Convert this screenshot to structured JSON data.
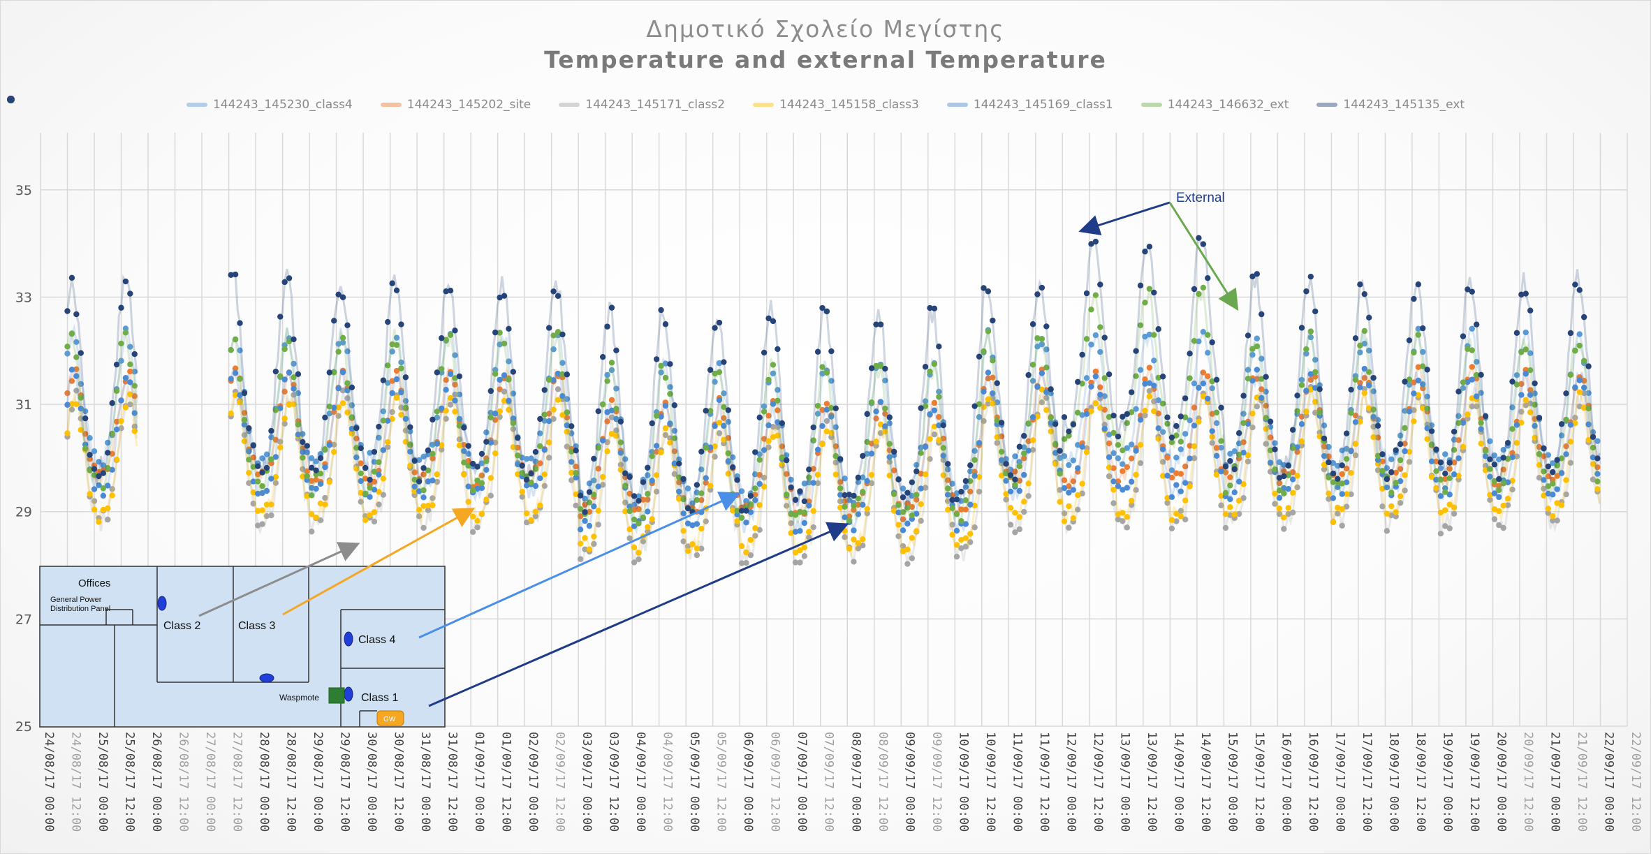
{
  "title": "Δημοτικό Σχολείο Μεγίστης",
  "subtitle": "Temperature and external Temperature",
  "colors": {
    "grid": "#d9d9d9",
    "axis_text": "#595959",
    "x_text": "#404040"
  },
  "chart_data": {
    "type": "scatter",
    "title": "Δημοτικό Σχολείο Μεγίστης",
    "subtitle": "Temperature and external Temperature",
    "ylim": [
      25,
      36
    ],
    "yticks": [
      25,
      27,
      29,
      31,
      33,
      35
    ],
    "xlim": [
      "24/08/17 00:00",
      "22/09/17 12:00"
    ],
    "x_tick_labels": [
      "24/08/17 00:00",
      "24/08/17 12:00",
      "25/08/17 00:00",
      "25/08/17 12:00",
      "26/08/17 00:00",
      "26/08/17 12:00",
      "27/08/17 00:00",
      "27/08/17 12:00",
      "28/08/17 00:00",
      "28/08/17 12:00",
      "29/08/17 00:00",
      "29/08/17 12:00",
      "30/08/17 00:00",
      "30/08/17 12:00",
      "31/08/17 00:00",
      "31/08/17 12:00",
      "01/09/17 00:00",
      "01/09/17 12:00",
      "02/09/17 00:00",
      "02/09/17 12:00",
      "03/09/17 00:00",
      "03/09/17 12:00",
      "04/09/17 00:00",
      "04/09/17 12:00",
      "05/09/17 00:00",
      "05/09/17 12:00",
      "06/09/17 00:00",
      "06/09/17 12:00",
      "07/09/17 00:00",
      "07/09/17 12:00",
      "08/09/17 00:00",
      "08/09/17 12:00",
      "09/09/17 00:00",
      "09/09/17 12:00",
      "10/09/17 00:00",
      "10/09/17 12:00",
      "11/09/17 00:00",
      "11/09/17 12:00",
      "12/09/17 00:00",
      "12/09/17 12:00",
      "13/09/17 00:00",
      "13/09/17 12:00",
      "14/09/17 00:00",
      "14/09/17 12:00",
      "15/09/17 00:00",
      "15/09/17 12:00",
      "16/09/17 00:00",
      "16/09/17 12:00",
      "17/09/17 00:00",
      "17/09/17 12:00",
      "18/09/17 00:00",
      "18/09/17 12:00",
      "19/09/17 00:00",
      "19/09/17 12:00",
      "20/09/17 00:00",
      "20/09/17 12:00",
      "21/09/17 00:00",
      "21/09/17 12:00",
      "22/09/17 00:00",
      "22/09/17 12:00"
    ],
    "x_tick_light": [
      1,
      5,
      6,
      7,
      19,
      23,
      25,
      27,
      29,
      31,
      33,
      55,
      57,
      59
    ],
    "gap": {
      "from": "25/08/17 20:00",
      "to": "27/08/17 12:00"
    },
    "series": [
      {
        "name": "144243_145230_class4",
        "color": "#5b9bd5",
        "base": 30.6,
        "amp": 1.2,
        "phase": 0.6,
        "noise": 0.35
      },
      {
        "name": "144243_145202_site",
        "color": "#ed7d31",
        "base": 30.2,
        "amp": 1.0,
        "phase": 0.62,
        "noise": 0.3
      },
      {
        "name": "144243_145171_class2",
        "color": "#a5a5a5",
        "base": 29.5,
        "amp": 1.2,
        "phase": 0.64,
        "noise": 0.4
      },
      {
        "name": "144243_145158_class3",
        "color": "#ffc000",
        "base": 29.6,
        "amp": 1.1,
        "phase": 0.63,
        "noise": 0.3
      },
      {
        "name": "144243_145169_class1",
        "color": "#4a8ad4",
        "base": 30.0,
        "amp": 1.1,
        "phase": 0.61,
        "noise": 0.3
      },
      {
        "name": "144243_146632_ext",
        "color": "#70ad47",
        "base": 30.3,
        "amp": 1.4,
        "phase": 0.58,
        "noise": 0.4
      },
      {
        "name": "144243_145135_ext",
        "color": "#264478",
        "base": 30.8,
        "amp": 1.8,
        "phase": 0.58,
        "noise": 0.45
      }
    ],
    "annotations": [
      {
        "text": "External",
        "target_series": "144243_145135_ext"
      },
      {
        "text": "External",
        "target_series": "144243_146632_ext"
      }
    ]
  },
  "floorplan": {
    "title": "Offices",
    "panel_label": "General Power\nDistribution Panel",
    "rooms": [
      "Class 2",
      "Class 3",
      "Class 4",
      "Class 1"
    ],
    "waspmote": "Waspmote",
    "gw": "GW"
  }
}
